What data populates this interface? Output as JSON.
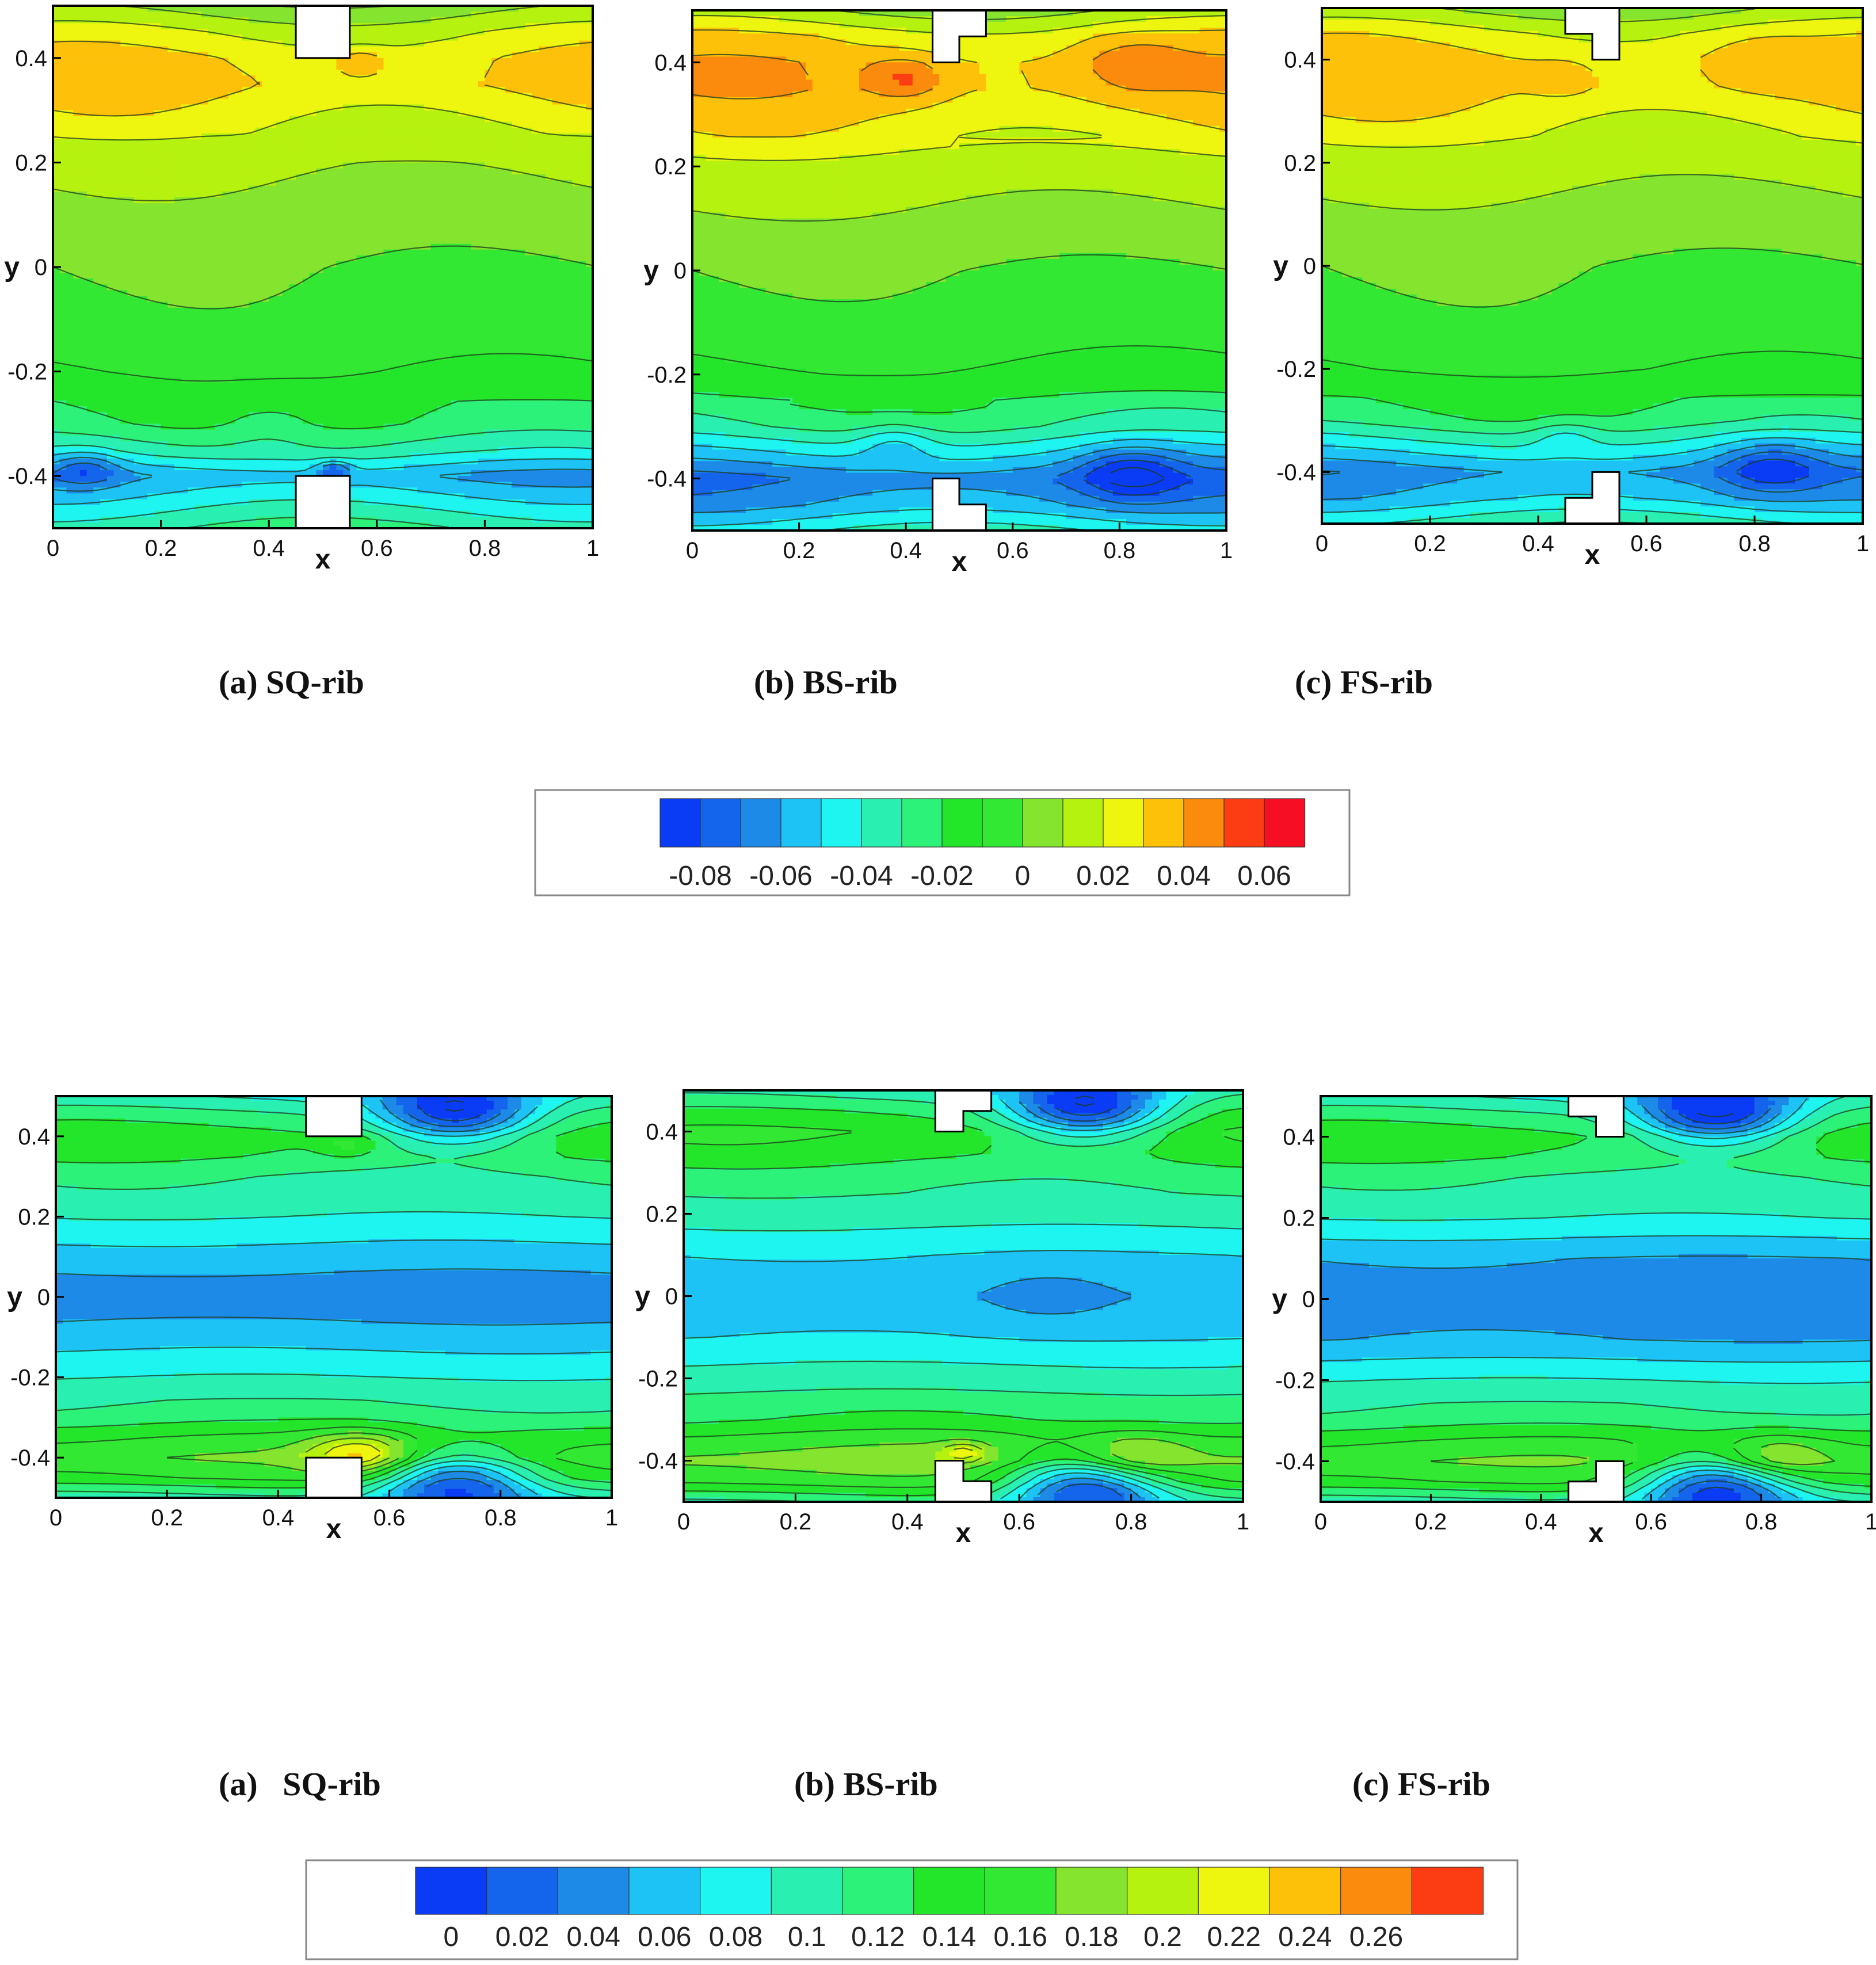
{
  "chart_data": [
    {
      "type": "heatmap",
      "panel": "(a) SQ-rib",
      "title": "(a) SQ-rib",
      "xlabel": "x",
      "ylabel": "y",
      "xlim": [
        0,
        1
      ],
      "ylim": [
        -0.5,
        0.5
      ],
      "xticks": [
        "0",
        "0.2",
        "0.4",
        "0.6",
        "0.8",
        "1"
      ],
      "yticks": [
        "0.4",
        "0.2",
        "0",
        "-0.2",
        "-0.4"
      ],
      "rib_shape": "square",
      "y_profile": [
        [
          -0.5,
          -0.03
        ],
        [
          -0.45,
          -0.045
        ],
        [
          -0.4,
          -0.06
        ],
        [
          -0.35,
          -0.035
        ],
        [
          -0.3,
          -0.02
        ],
        [
          -0.2,
          -0.01
        ],
        [
          -0.1,
          -0.003
        ],
        [
          0,
          0.0
        ],
        [
          0.1,
          0.006
        ],
        [
          0.2,
          0.012
        ],
        [
          0.3,
          0.025
        ],
        [
          0.35,
          0.032
        ],
        [
          0.4,
          0.03
        ],
        [
          0.45,
          0.02
        ],
        [
          0.5,
          0.005
        ]
      ],
      "blobs": [
        {
          "x": 0.06,
          "y": -0.385,
          "r": 0.06,
          "v": -0.02
        },
        {
          "x": 0.52,
          "y": -0.39,
          "r": 0.03,
          "v": -0.03
        },
        {
          "x": 0.57,
          "y": 0.39,
          "r": 0.045,
          "v": 0.015
        },
        {
          "x": 0.4,
          "y": -0.3,
          "r": 0.1,
          "v": -0.01
        }
      ]
    },
    {
      "type": "heatmap",
      "panel": "(b) BS-rib",
      "title": "(b) BS-rib",
      "xlabel": "x",
      "ylabel": "y",
      "xlim": [
        0,
        1
      ],
      "ylim": [
        -0.5,
        0.5
      ],
      "xticks": [
        "0",
        "0.2",
        "0.4",
        "0.6",
        "0.8",
        "1"
      ],
      "yticks": [
        "0.4",
        "0.2",
        "0",
        "-0.2",
        "-0.4"
      ],
      "rib_shape": "backward-step",
      "y_profile": [
        [
          -0.5,
          -0.04
        ],
        [
          -0.45,
          -0.06
        ],
        [
          -0.4,
          -0.07
        ],
        [
          -0.35,
          -0.05
        ],
        [
          -0.3,
          -0.03
        ],
        [
          -0.2,
          -0.012
        ],
        [
          -0.1,
          -0.004
        ],
        [
          0,
          0.0
        ],
        [
          0.1,
          0.008
        ],
        [
          0.2,
          0.016
        ],
        [
          0.3,
          0.03
        ],
        [
          0.35,
          0.036
        ],
        [
          0.4,
          0.036
        ],
        [
          0.45,
          0.028
        ],
        [
          0.5,
          0.01
        ]
      ],
      "blobs": [
        {
          "x": 0.82,
          "y": -0.39,
          "r": 0.09,
          "v": -0.025
        },
        {
          "x": 0.38,
          "y": -0.33,
          "r": 0.07,
          "v": -0.015
        },
        {
          "x": 0.4,
          "y": 0.37,
          "r": 0.07,
          "v": 0.018
        },
        {
          "x": 0.82,
          "y": 0.4,
          "r": 0.1,
          "v": 0.012
        }
      ]
    },
    {
      "type": "heatmap",
      "panel": "(c) FS-rib",
      "title": "(c) FS-rib",
      "xlabel": "x",
      "ylabel": "y",
      "xlim": [
        0,
        1
      ],
      "ylim": [
        -0.5,
        0.5
      ],
      "xticks": [
        "0",
        "0.2",
        "0.4",
        "0.6",
        "0.8",
        "1"
      ],
      "yticks": [
        "0.4",
        "0.2",
        "0",
        "-0.2",
        "-0.4"
      ],
      "rib_shape": "forward-step",
      "y_profile": [
        [
          -0.5,
          -0.035
        ],
        [
          -0.45,
          -0.055
        ],
        [
          -0.4,
          -0.065
        ],
        [
          -0.35,
          -0.045
        ],
        [
          -0.3,
          -0.025
        ],
        [
          -0.2,
          -0.01
        ],
        [
          -0.1,
          -0.003
        ],
        [
          0,
          0.0
        ],
        [
          0.1,
          0.007
        ],
        [
          0.2,
          0.014
        ],
        [
          0.3,
          0.026
        ],
        [
          0.35,
          0.032
        ],
        [
          0.4,
          0.032
        ],
        [
          0.45,
          0.024
        ],
        [
          0.5,
          0.008
        ]
      ],
      "blobs": [
        {
          "x": 0.83,
          "y": -0.39,
          "r": 0.09,
          "v": -0.022
        },
        {
          "x": 0.45,
          "y": -0.33,
          "r": 0.06,
          "v": -0.012
        },
        {
          "x": 0.45,
          "y": 0.36,
          "r": 0.06,
          "v": 0.01
        },
        {
          "x": 0.8,
          "y": 0.4,
          "r": 0.1,
          "v": 0.008
        }
      ]
    },
    {
      "type": "heatmap",
      "panel": "(a)   SQ-rib",
      "title": "(a)   SQ-rib",
      "xlabel": "x",
      "ylabel": "y",
      "xlim": [
        0,
        1
      ],
      "ylim": [
        -0.5,
        0.5
      ],
      "xticks": [
        "0",
        "0.2",
        "0.4",
        "0.6",
        "0.8",
        "1"
      ],
      "yticks": [
        "0.4",
        "0.2",
        "0",
        "-0.2",
        "-0.4"
      ],
      "rib_shape": "square",
      "y_profile": [
        [
          -0.5,
          0.1
        ],
        [
          -0.45,
          0.15
        ],
        [
          -0.4,
          0.17
        ],
        [
          -0.35,
          0.15
        ],
        [
          -0.3,
          0.12
        ],
        [
          -0.2,
          0.09
        ],
        [
          -0.1,
          0.06
        ],
        [
          0,
          0.035
        ],
        [
          0.1,
          0.06
        ],
        [
          0.2,
          0.09
        ],
        [
          0.3,
          0.11
        ],
        [
          0.35,
          0.13
        ],
        [
          0.4,
          0.14
        ],
        [
          0.45,
          0.12
        ],
        [
          0.5,
          0.09
        ]
      ],
      "blobs": [
        {
          "x": 0.55,
          "y": -0.39,
          "r": 0.09,
          "v": 0.07
        },
        {
          "x": 0.53,
          "y": 0.38,
          "r": 0.05,
          "v": 0.03
        },
        {
          "x": 0.72,
          "y": -0.46,
          "r": 0.14,
          "v": -0.12
        },
        {
          "x": 0.72,
          "y": 0.46,
          "r": 0.14,
          "v": -0.12
        }
      ]
    },
    {
      "type": "heatmap",
      "panel": "(b) BS-rib",
      "title": "(b) BS-rib",
      "xlabel": "x",
      "ylabel": "y",
      "xlim": [
        0,
        1
      ],
      "ylim": [
        -0.5,
        0.5
      ],
      "xticks": [
        "0",
        "0.2",
        "0.4",
        "0.6",
        "0.8",
        "1"
      ],
      "yticks": [
        "0.4",
        "0.2",
        "0",
        "-0.2",
        "-0.4"
      ],
      "rib_shape": "backward-step",
      "y_profile": [
        [
          -0.5,
          0.11
        ],
        [
          -0.45,
          0.16
        ],
        [
          -0.4,
          0.18
        ],
        [
          -0.35,
          0.16
        ],
        [
          -0.3,
          0.13
        ],
        [
          -0.2,
          0.1
        ],
        [
          -0.1,
          0.07
        ],
        [
          0,
          0.055
        ],
        [
          0.1,
          0.07
        ],
        [
          0.2,
          0.1
        ],
        [
          0.3,
          0.12
        ],
        [
          0.35,
          0.14
        ],
        [
          0.4,
          0.15
        ],
        [
          0.45,
          0.13
        ],
        [
          0.5,
          0.1
        ]
      ],
      "blobs": [
        {
          "x": 0.8,
          "y": -0.39,
          "r": 0.1,
          "v": 0.05
        },
        {
          "x": 0.5,
          "y": -0.38,
          "r": 0.04,
          "v": 0.05
        },
        {
          "x": 0.72,
          "y": -0.46,
          "r": 0.14,
          "v": -0.13
        },
        {
          "x": 0.72,
          "y": 0.46,
          "r": 0.14,
          "v": -0.13
        },
        {
          "x": 0.65,
          "y": 0.0,
          "r": 0.12,
          "v": -0.015
        }
      ]
    },
    {
      "type": "heatmap",
      "panel": "(c) FS-rib",
      "title": "(c) FS-rib",
      "xlabel": "x",
      "ylabel": "y",
      "xlim": [
        0,
        1
      ],
      "ylim": [
        -0.5,
        0.5
      ],
      "xticks": [
        "0",
        "0.2",
        "0.4",
        "0.6",
        "0.8",
        "1"
      ],
      "yticks": [
        "0.4",
        "0.2",
        "0",
        "-0.2",
        "-0.4"
      ],
      "rib_shape": "forward-step",
      "y_profile": [
        [
          -0.5,
          0.1
        ],
        [
          -0.45,
          0.15
        ],
        [
          -0.4,
          0.17
        ],
        [
          -0.35,
          0.15
        ],
        [
          -0.3,
          0.12
        ],
        [
          -0.2,
          0.09
        ],
        [
          -0.1,
          0.05
        ],
        [
          0,
          0.04
        ],
        [
          0.1,
          0.05
        ],
        [
          0.2,
          0.09
        ],
        [
          0.3,
          0.11
        ],
        [
          0.35,
          0.13
        ],
        [
          0.4,
          0.14
        ],
        [
          0.45,
          0.12
        ],
        [
          0.5,
          0.09
        ]
      ],
      "blobs": [
        {
          "x": 0.82,
          "y": -0.39,
          "r": 0.1,
          "v": 0.05
        },
        {
          "x": 0.72,
          "y": -0.46,
          "r": 0.14,
          "v": -0.13
        },
        {
          "x": 0.72,
          "y": 0.46,
          "r": 0.14,
          "v": -0.13
        }
      ]
    }
  ],
  "titles_top": [
    "(a) SQ-rib",
    "(b) BS-rib",
    "(c) FS-rib"
  ],
  "titles_bottom": [
    "(a)   SQ-rib",
    "(b) BS-rib",
    "(c) FS-rib"
  ],
  "colorbars": [
    {
      "levels": [
        -0.09,
        -0.08,
        -0.07,
        -0.06,
        -0.05,
        -0.04,
        -0.03,
        -0.02,
        -0.01,
        0,
        0.01,
        0.02,
        0.03,
        0.04,
        0.05,
        0.06
      ],
      "labels": [
        "-0.08",
        "-0.06",
        "-0.04",
        "-0.02",
        "0",
        "0.02",
        "0.04",
        "0.06"
      ],
      "label_values": [
        -0.08,
        -0.06,
        -0.04,
        -0.02,
        0,
        0.02,
        0.04,
        0.06
      ],
      "colors": [
        "#0a3cf5",
        "#1464ec",
        "#1c8ae6",
        "#1ec3f5",
        "#1ef5f0",
        "#29f0b0",
        "#2df27a",
        "#23e62a",
        "#33e833",
        "#85e42e",
        "#b6f20f",
        "#eef50f",
        "#fdc10a",
        "#fb8b0c",
        "#fc3c12",
        "#f60f24"
      ]
    },
    {
      "levels": [
        -0.01,
        0.01,
        0.03,
        0.05,
        0.07,
        0.09,
        0.11,
        0.13,
        0.15,
        0.17,
        0.19,
        0.21,
        0.23,
        0.25,
        0.27
      ],
      "labels": [
        "0",
        "0.02",
        "0.04",
        "0.06",
        "0.08",
        "0.1",
        "0.12",
        "0.14",
        "0.16",
        "0.18",
        "0.2",
        "0.22",
        "0.24",
        "0.26"
      ],
      "label_values": [
        0,
        0.02,
        0.04,
        0.06,
        0.08,
        0.1,
        0.12,
        0.14,
        0.16,
        0.18,
        0.2,
        0.22,
        0.24,
        0.26
      ],
      "colors": [
        "#0a3cf5",
        "#1464ec",
        "#1c8ae6",
        "#1ec3f5",
        "#1ef5f0",
        "#29f0b0",
        "#2df27a",
        "#23e62a",
        "#33e833",
        "#85e42e",
        "#b6f20f",
        "#eef50f",
        "#fdc10a",
        "#fb8b0c",
        "#fc3c12",
        "#f60f24"
      ]
    }
  ]
}
